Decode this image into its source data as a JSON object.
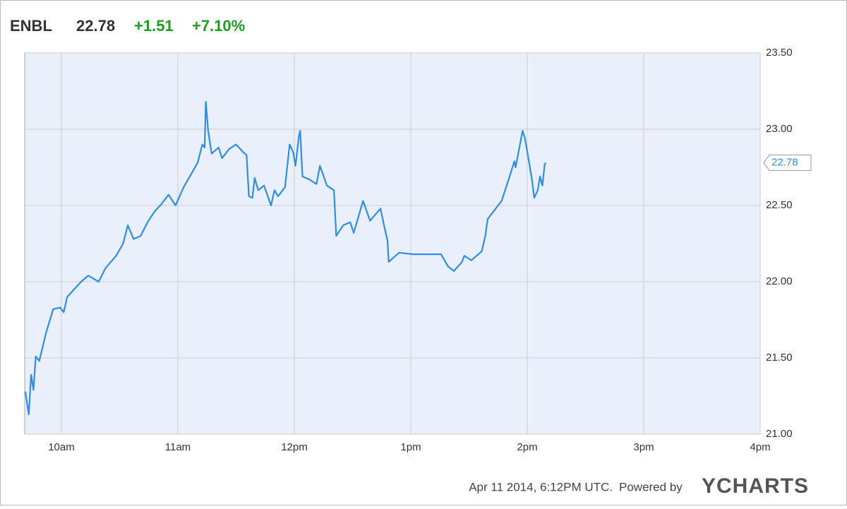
{
  "chart_data": {
    "type": "line",
    "symbol": "ENBL",
    "price": "22.78",
    "change": "+1.51",
    "change_percent": "+7.10%",
    "timestamp": "Apr 11 2014, 6:12PM UTC.",
    "powered_by": "Powered by",
    "brand": "YCHARTS",
    "color": "#2f8de4",
    "grid": true,
    "x": [
      9.69,
      9.72,
      9.74,
      9.76,
      9.78,
      9.81,
      9.87,
      9.93,
      9.99,
      10.02,
      10.05,
      10.11,
      10.17,
      10.23,
      10.32,
      10.38,
      10.47,
      10.53,
      10.57,
      10.62,
      10.68,
      10.74,
      10.8,
      10.86,
      10.92,
      10.98,
      11.05,
      11.11,
      11.17,
      11.21,
      11.23,
      11.24,
      11.26,
      11.29,
      11.35,
      11.38,
      11.44,
      11.5,
      11.56,
      11.59,
      11.61,
      11.64,
      11.66,
      11.69,
      11.74,
      11.8,
      11.83,
      11.86,
      11.92,
      11.96,
      11.99,
      12.01,
      12.04,
      12.05,
      12.07,
      12.13,
      12.19,
      12.22,
      12.28,
      12.34,
      12.36,
      12.42,
      12.48,
      12.51,
      12.59,
      12.65,
      12.74,
      12.77,
      12.8,
      12.81,
      12.9,
      13.02,
      13.14,
      13.26,
      13.32,
      13.37,
      13.44,
      13.46,
      13.52,
      13.61,
      13.64,
      13.66,
      13.72,
      13.78,
      13.84,
      13.89,
      13.9,
      13.96,
      13.98,
      14.01,
      14.04,
      14.06,
      14.09,
      14.11,
      14.13,
      14.15,
      14.16
    ],
    "values": [
      21.28,
      21.13,
      21.39,
      21.29,
      21.51,
      21.48,
      21.67,
      21.82,
      21.83,
      21.8,
      21.9,
      21.95,
      22.0,
      22.04,
      22.0,
      22.09,
      22.17,
      22.25,
      22.37,
      22.28,
      22.3,
      22.39,
      22.46,
      22.51,
      22.57,
      22.5,
      22.62,
      22.7,
      22.78,
      22.9,
      22.88,
      23.18,
      22.99,
      22.84,
      22.88,
      22.81,
      22.87,
      22.9,
      22.85,
      22.83,
      22.56,
      22.55,
      22.68,
      22.6,
      22.63,
      22.5,
      22.6,
      22.56,
      22.62,
      22.9,
      22.85,
      22.76,
      22.96,
      22.99,
      22.69,
      22.67,
      22.64,
      22.76,
      22.63,
      22.6,
      22.3,
      22.37,
      22.39,
      22.32,
      22.53,
      22.4,
      22.48,
      22.37,
      22.27,
      22.13,
      22.19,
      22.18,
      22.18,
      22.18,
      22.1,
      22.07,
      22.13,
      22.17,
      22.14,
      22.2,
      22.3,
      22.41,
      22.47,
      22.53,
      22.67,
      22.79,
      22.75,
      22.99,
      22.94,
      22.81,
      22.67,
      22.55,
      22.6,
      22.69,
      22.63,
      22.77,
      22.78
    ],
    "xlim": [
      9.685,
      16
    ],
    "xticks": [
      {
        "value": 10,
        "label": "10am"
      },
      {
        "value": 11,
        "label": "11am"
      },
      {
        "value": 12,
        "label": "12pm"
      },
      {
        "value": 13,
        "label": "1pm"
      },
      {
        "value": 14,
        "label": "2pm"
      },
      {
        "value": 15,
        "label": "3pm"
      },
      {
        "value": 16,
        "label": "4pm"
      }
    ],
    "ylim": [
      21,
      23.5
    ],
    "yticks": [
      {
        "value": 21,
        "label": "21.00"
      },
      {
        "value": 21.5,
        "label": "21.50"
      },
      {
        "value": 22,
        "label": "22.00"
      },
      {
        "value": 22.5,
        "label": "22.50"
      },
      {
        "value": 23,
        "label": "23.00"
      },
      {
        "value": 23.5,
        "label": "23.50"
      }
    ]
  }
}
